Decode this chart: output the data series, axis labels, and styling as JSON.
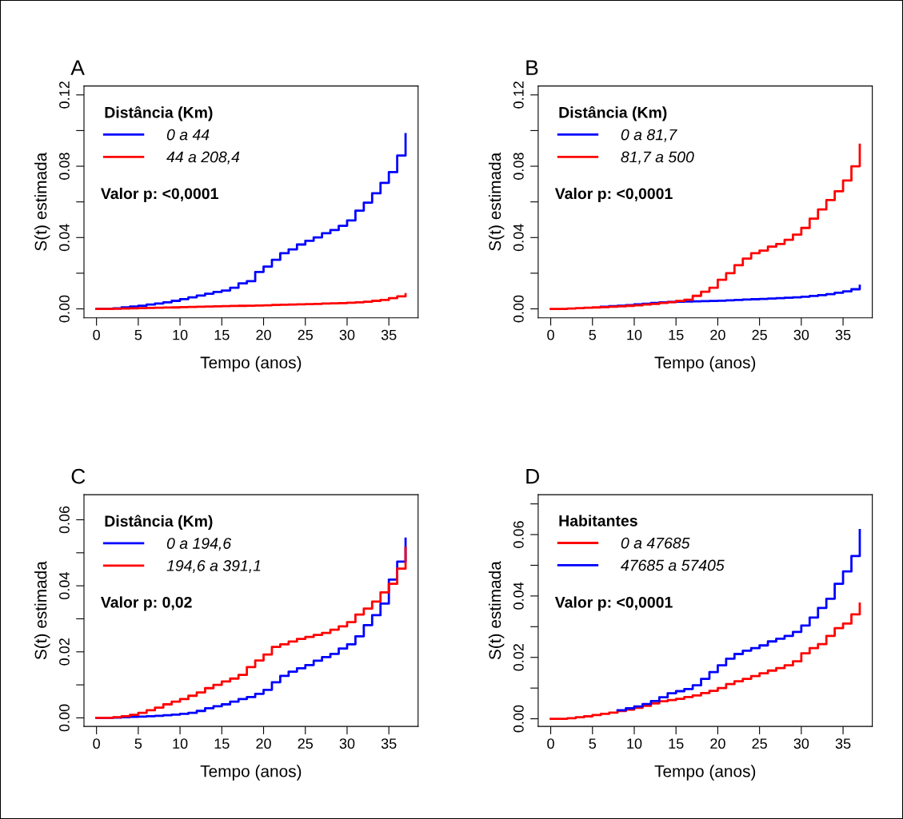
{
  "chart_data": [
    {
      "type": "step",
      "title": "A",
      "xlabel": "Tempo (anos)",
      "ylabel": "S(t) estimada",
      "legend_title": "Distância (Km)",
      "annotations": [
        "Valor p: <0,0001"
      ],
      "legend": "top left",
      "grid": false,
      "x": [
        0,
        1,
        2,
        3,
        4,
        5,
        6,
        7,
        8,
        9,
        10,
        11,
        12,
        13,
        14,
        15,
        16,
        17,
        18,
        19,
        20,
        21,
        22,
        23,
        24,
        25,
        26,
        27,
        28,
        29,
        30,
        31,
        32,
        33,
        34,
        35,
        36,
        37
      ],
      "xlim": [
        -1.5,
        38.5
      ],
      "xticks": [
        0,
        5,
        10,
        15,
        20,
        25,
        30,
        35
      ],
      "ylim": [
        -0.005,
        0.125
      ],
      "yticks": [
        {
          "value": 0,
          "label": "0.00"
        },
        {
          "value": 0.02,
          "label": null
        },
        {
          "value": 0.04,
          "label": "0.04"
        },
        {
          "value": 0.06,
          "label": null
        },
        {
          "value": 0.08,
          "label": "0.08"
        },
        {
          "value": 0.1,
          "label": null
        },
        {
          "value": 0.12,
          "label": "0.12"
        }
      ],
      "series": [
        {
          "name": "0 a 44",
          "color": "#0000ff",
          "values": [
            0,
            0,
            0.0003,
            0.0008,
            0.0013,
            0.0018,
            0.0024,
            0.003,
            0.0037,
            0.0045,
            0.0055,
            0.0065,
            0.0075,
            0.0085,
            0.0095,
            0.0103,
            0.0118,
            0.0143,
            0.0155,
            0.0207,
            0.0237,
            0.0275,
            0.0312,
            0.0334,
            0.0361,
            0.0382,
            0.0401,
            0.0424,
            0.0442,
            0.0466,
            0.0496,
            0.0551,
            0.0596,
            0.0648,
            0.0707,
            0.0767,
            0.086,
            0.098
          ]
        },
        {
          "name": "44 a 208,4",
          "color": "#ff0000",
          "values": [
            0,
            0,
            0.0001,
            0.0002,
            0.0003,
            0.0004,
            0.0005,
            0.0006,
            0.0007,
            0.0008,
            0.001,
            0.0011,
            0.0012,
            0.0013,
            0.0014,
            0.0015,
            0.0016,
            0.0017,
            0.0018,
            0.0019,
            0.002,
            0.0022,
            0.0023,
            0.0024,
            0.0025,
            0.0027,
            0.0028,
            0.003,
            0.0031,
            0.0032,
            0.0034,
            0.0037,
            0.004,
            0.0045,
            0.005,
            0.006,
            0.007,
            0.0083
          ]
        }
      ]
    },
    {
      "type": "step",
      "title": "B",
      "xlabel": "Tempo (anos)",
      "ylabel": "S(t) estimada",
      "legend_title": "Distância (Km)",
      "annotations": [
        "Valor p: <0,0001"
      ],
      "legend": "top left",
      "grid": false,
      "x": [
        0,
        1,
        2,
        3,
        4,
        5,
        6,
        7,
        8,
        9,
        10,
        11,
        12,
        13,
        14,
        15,
        16,
        17,
        18,
        19,
        20,
        21,
        22,
        23,
        24,
        25,
        26,
        27,
        28,
        29,
        30,
        31,
        32,
        33,
        34,
        35,
        36,
        37
      ],
      "xlim": [
        -1.5,
        38.5
      ],
      "xticks": [
        0,
        5,
        10,
        15,
        20,
        25,
        30,
        35
      ],
      "ylim": [
        -0.005,
        0.125
      ],
      "yticks": [
        {
          "value": 0,
          "label": "0.00"
        },
        {
          "value": 0.02,
          "label": null
        },
        {
          "value": 0.04,
          "label": "0.04"
        },
        {
          "value": 0.06,
          "label": null
        },
        {
          "value": 0.08,
          "label": "0.08"
        },
        {
          "value": 0.1,
          "label": null
        },
        {
          "value": 0.12,
          "label": "0.12"
        }
      ],
      "series": [
        {
          "name": "0 a 81,7",
          "color": "#0000ff",
          "values": [
            null,
            null,
            null,
            null,
            null,
            null,
            0.0012,
            0.0015,
            0.0018,
            0.0021,
            0.0025,
            0.0029,
            0.0033,
            0.0036,
            0.0039,
            0.004,
            0.0041,
            0.0042,
            0.0043,
            0.0044,
            0.0046,
            0.0048,
            0.005,
            0.0052,
            0.0054,
            0.0056,
            0.0058,
            0.006,
            0.0062,
            0.0065,
            0.0068,
            0.0072,
            0.0077,
            0.0083,
            0.009,
            0.0098,
            0.011,
            0.013
          ]
        },
        {
          "name": "81,7 a 500",
          "color": "#ff0000",
          "values": [
            0,
            0,
            0.0002,
            0.0004,
            0.0006,
            0.0008,
            0.001,
            0.0012,
            0.0014,
            0.0017,
            0.002,
            0.0024,
            0.0028,
            0.0033,
            0.0038,
            0.0044,
            0.0051,
            0.0073,
            0.0096,
            0.0118,
            0.0163,
            0.02,
            0.0245,
            0.0282,
            0.0312,
            0.0327,
            0.0349,
            0.0364,
            0.0387,
            0.0416,
            0.0454,
            0.0506,
            0.0558,
            0.061,
            0.066,
            0.072,
            0.08,
            0.092
          ]
        }
      ]
    },
    {
      "type": "step",
      "title": "C",
      "xlabel": "Tempo (anos)",
      "ylabel": "S(t) estimada",
      "legend_title": "Distância (Km)",
      "annotations": [
        "Valor p: 0,02"
      ],
      "legend": "top left",
      "grid": false,
      "x": [
        0,
        1,
        2,
        3,
        4,
        5,
        6,
        7,
        8,
        9,
        10,
        11,
        12,
        13,
        14,
        15,
        16,
        17,
        18,
        19,
        20,
        21,
        22,
        23,
        24,
        25,
        26,
        27,
        28,
        29,
        30,
        31,
        32,
        33,
        34,
        35,
        36,
        37
      ],
      "xlim": [
        -1.5,
        38.5
      ],
      "xticks": [
        0,
        5,
        10,
        15,
        20,
        25,
        30,
        35
      ],
      "ylim": [
        -0.0026,
        0.0676
      ],
      "yticks": [
        {
          "value": 0,
          "label": "0.00"
        },
        {
          "value": 0.01,
          "label": null
        },
        {
          "value": 0.02,
          "label": "0.02"
        },
        {
          "value": 0.03,
          "label": null
        },
        {
          "value": 0.04,
          "label": "0.04"
        },
        {
          "value": 0.05,
          "label": null
        },
        {
          "value": 0.06,
          "label": "0.06"
        }
      ],
      "series": [
        {
          "name": "0 a 194,6",
          "color": "#0000ff",
          "values": [
            0,
            0,
            0.0001,
            0.0002,
            0.0003,
            0.0004,
            0.0005,
            0.0006,
            0.0008,
            0.001,
            0.0012,
            0.0015,
            0.0021,
            0.0029,
            0.0035,
            0.0041,
            0.0049,
            0.0057,
            0.0063,
            0.0073,
            0.0085,
            0.0108,
            0.0127,
            0.014,
            0.015,
            0.016,
            0.0173,
            0.0184,
            0.0194,
            0.021,
            0.0223,
            0.0247,
            0.0281,
            0.0311,
            0.0346,
            0.0419,
            0.0473,
            0.0543
          ]
        },
        {
          "name": "194,6 a 391,1",
          "color": "#ff0000",
          "values": [
            0,
            0,
            0.0002,
            0.0005,
            0.0009,
            0.0015,
            0.0023,
            0.0031,
            0.0041,
            0.0049,
            0.0057,
            0.0067,
            0.0077,
            0.009,
            0.01,
            0.011,
            0.0119,
            0.013,
            0.0154,
            0.0174,
            0.0192,
            0.0215,
            0.0223,
            0.0231,
            0.0239,
            0.0245,
            0.0251,
            0.0257,
            0.0267,
            0.0277,
            0.029,
            0.0313,
            0.0331,
            0.0352,
            0.038,
            0.0406,
            0.0452,
            0.0515
          ]
        }
      ]
    },
    {
      "type": "step",
      "title": "D",
      "xlabel": "Tempo (anos)",
      "ylabel": "S(t) estimada",
      "legend_title": "Habitantes",
      "annotations": [
        "Valor p: <0,0001"
      ],
      "legend": "top left",
      "grid": false,
      "x": [
        0,
        1,
        2,
        3,
        4,
        5,
        6,
        7,
        8,
        9,
        10,
        11,
        12,
        13,
        14,
        15,
        16,
        17,
        18,
        19,
        20,
        21,
        22,
        23,
        24,
        25,
        26,
        27,
        28,
        29,
        30,
        31,
        32,
        33,
        34,
        35,
        36,
        37
      ],
      "xlim": [
        -1.5,
        38.5
      ],
      "xticks": [
        0,
        5,
        10,
        15,
        20,
        25,
        30,
        35
      ],
      "ylim": [
        -0.0025,
        0.073
      ],
      "yticks": [
        {
          "value": 0,
          "label": "0.00"
        },
        {
          "value": 0.01,
          "label": null
        },
        {
          "value": 0.02,
          "label": "0.02"
        },
        {
          "value": 0.03,
          "label": null
        },
        {
          "value": 0.04,
          "label": "0.04"
        },
        {
          "value": 0.05,
          "label": null
        },
        {
          "value": 0.06,
          "label": "0.06"
        },
        {
          "value": 0.07,
          "label": null
        }
      ],
      "series": [
        {
          "name": "0 a 47685",
          "color": "#ff0000",
          "values": [
            0,
            0,
            0.0002,
            0.0005,
            0.0008,
            0.0012,
            0.0016,
            0.002,
            0.0025,
            0.003,
            0.0036,
            0.0042,
            0.005,
            0.0057,
            0.0061,
            0.0065,
            0.0071,
            0.0076,
            0.0084,
            0.0091,
            0.01,
            0.0113,
            0.0122,
            0.013,
            0.0139,
            0.0148,
            0.0157,
            0.0165,
            0.0174,
            0.0187,
            0.0213,
            0.023,
            0.0243,
            0.027,
            0.0295,
            0.031,
            0.034,
            0.0375
          ]
        },
        {
          "name": "47685 a 57405",
          "color": "#0000ff",
          "values": [
            null,
            null,
            null,
            null,
            null,
            null,
            null,
            null,
            0.0028,
            0.0034,
            0.004,
            0.0048,
            0.0058,
            0.007,
            0.0083,
            0.009,
            0.0097,
            0.0109,
            0.013,
            0.0152,
            0.0174,
            0.0196,
            0.0211,
            0.0222,
            0.023,
            0.0239,
            0.0252,
            0.0261,
            0.027,
            0.0283,
            0.0304,
            0.033,
            0.0361,
            0.0391,
            0.044,
            0.048,
            0.053,
            0.0615
          ]
        }
      ]
    }
  ]
}
